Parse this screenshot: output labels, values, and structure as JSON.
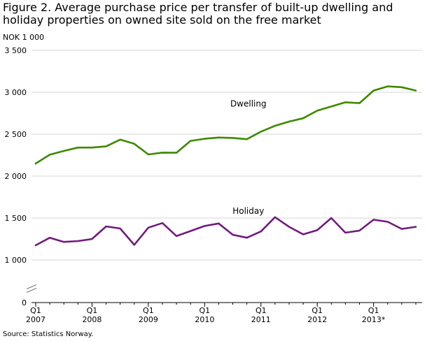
{
  "chart_data": {
    "type": "line",
    "title": "Figure 2. Average purchase price per transfer of built-up dwelling and holiday properties on owned site sold on the free market",
    "ylabel": "NOK 1 000",
    "ylim": [
      0,
      3500
    ],
    "y_ticks": [
      0,
      1000,
      1500,
      2000,
      2500,
      3000,
      3500
    ],
    "y_tick_labels": [
      "0",
      "1 000",
      "1 500",
      "2 000",
      "2 500",
      "3 000",
      "3 500"
    ],
    "axis_break": true,
    "grid": true,
    "x_ticks": [
      {
        "index": 0,
        "quarter": "Q1",
        "year": "2007"
      },
      {
        "index": 4,
        "quarter": "Q1",
        "year": "2008"
      },
      {
        "index": 8,
        "quarter": "Q1",
        "year": "2009"
      },
      {
        "index": 12,
        "quarter": "Q1",
        "year": "2010"
      },
      {
        "index": 16,
        "quarter": "Q1",
        "year": "2011"
      },
      {
        "index": 20,
        "quarter": "Q1",
        "year": "2012"
      },
      {
        "index": 24,
        "quarter": "Q1",
        "year": "2013*"
      }
    ],
    "series": [
      {
        "name": "Dwelling",
        "color": "#3d8a00",
        "values": [
          2150,
          2255,
          2300,
          2340,
          2340,
          2355,
          2435,
          2385,
          2258,
          2280,
          2278,
          2420,
          2445,
          2460,
          2455,
          2440,
          2530,
          2600,
          2650,
          2690,
          2780,
          2830,
          2880,
          2870,
          3020,
          3070,
          3060,
          3020
        ]
      },
      {
        "name": "Holiday",
        "color": "#711b7e",
        "values": [
          1175,
          1265,
          1215,
          1225,
          1250,
          1400,
          1375,
          1180,
          1385,
          1440,
          1285,
          1345,
          1405,
          1435,
          1300,
          1265,
          1340,
          1510,
          1395,
          1305,
          1355,
          1500,
          1325,
          1350,
          1480,
          1455,
          1370,
          1395
        ]
      }
    ]
  },
  "source": "Source: Statistics Norway."
}
